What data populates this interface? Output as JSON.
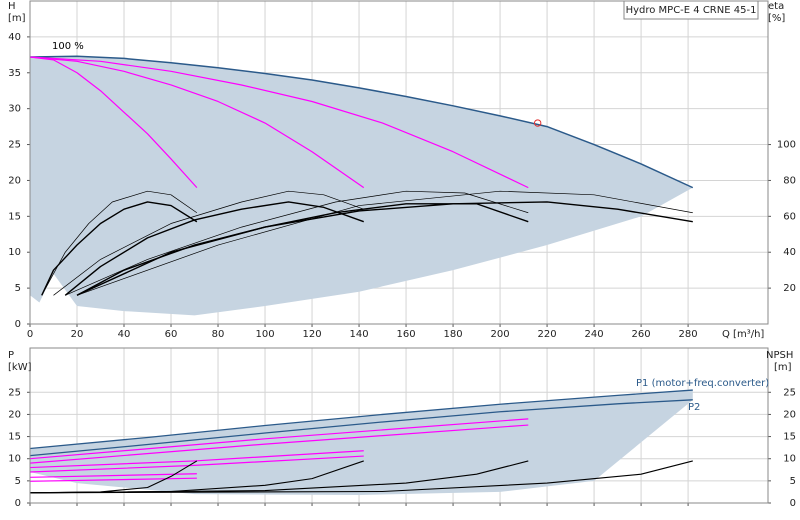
{
  "chart_data": [
    {
      "type": "line",
      "title": "Hydro MPC-E 4 CRNE 45-1",
      "y_label": "H",
      "y_unit": "[m]",
      "y2_label": "eta",
      "y2_unit": "[%]",
      "x_label": "Q [m³/h]",
      "xlim": [
        0,
        314
      ],
      "xticks": [
        0,
        20,
        40,
        60,
        80,
        100,
        120,
        140,
        160,
        180,
        200,
        220,
        240,
        260,
        280
      ],
      "ylim": [
        0,
        45
      ],
      "yticks": [
        0,
        5,
        10,
        15,
        20,
        25,
        30,
        35,
        40
      ],
      "y2lim": [
        0,
        180
      ],
      "y2ticks": [
        20,
        40,
        60,
        80,
        100
      ],
      "grid": true,
      "annotations": [
        "100 %"
      ],
      "band": {
        "color": "#c6d4e1",
        "x": [
          0,
          4,
          10,
          20,
          40,
          70,
          100,
          140,
          180,
          220,
          260,
          282
        ],
        "lower": [
          4,
          3,
          7,
          2.5,
          1.8,
          1.2,
          2.5,
          4.5,
          7.5,
          11,
          15,
          19
        ]
      },
      "series": [
        {
          "color": "#2b5a8a",
          "width": 1.5,
          "x": [
            0,
            20,
            40,
            60,
            80,
            100,
            120,
            140,
            160,
            180,
            200,
            220,
            240,
            260,
            282
          ],
          "values": [
            37.2,
            37.3,
            37,
            36.4,
            35.7,
            34.9,
            34,
            32.9,
            31.7,
            30.4,
            29,
            27.5,
            25,
            22.3,
            19
          ]
        },
        {
          "color": "#ff00ff",
          "width": 1.2,
          "x": [
            0,
            10,
            20,
            30,
            40,
            50,
            60,
            71
          ],
          "values": [
            37.2,
            36.8,
            35,
            32.5,
            29.5,
            26.5,
            23,
            19
          ]
        },
        {
          "color": "#ff00ff",
          "width": 1.2,
          "x": [
            0,
            20,
            40,
            60,
            80,
            100,
            120,
            142
          ],
          "values": [
            37.2,
            36.6,
            35.2,
            33.3,
            31,
            28,
            24,
            19
          ]
        },
        {
          "color": "#ff00ff",
          "width": 1.2,
          "x": [
            0,
            30,
            60,
            90,
            120,
            150,
            180,
            212
          ],
          "values": [
            37.2,
            36.6,
            35.2,
            33.3,
            31,
            28,
            24,
            19
          ]
        },
        {
          "color": "#000000",
          "width": 1.4,
          "axis": "y2",
          "x": [
            5,
            10,
            20,
            30,
            40,
            50,
            60,
            71
          ],
          "values": [
            16,
            30,
            44,
            56,
            64,
            68,
            66,
            57
          ]
        },
        {
          "color": "#000000",
          "width": 0.7,
          "axis": "y2",
          "x": [
            5,
            15,
            25,
            35,
            50,
            60,
            71
          ],
          "values": [
            16,
            40,
            56,
            68,
            74,
            72,
            62
          ]
        },
        {
          "color": "#000000",
          "width": 1.4,
          "axis": "y2",
          "x": [
            15,
            30,
            50,
            70,
            90,
            110,
            125,
            142
          ],
          "values": [
            16,
            32,
            48,
            58,
            64,
            68,
            65,
            57
          ]
        },
        {
          "color": "#000000",
          "width": 0.7,
          "axis": "y2",
          "x": [
            10,
            30,
            60,
            90,
            110,
            125,
            142
          ],
          "values": [
            16,
            36,
            56,
            68,
            74,
            72,
            64
          ]
        },
        {
          "color": "#000000",
          "width": 1.4,
          "axis": "y2",
          "x": [
            20,
            40,
            70,
            100,
            130,
            160,
            190,
            212
          ],
          "values": [
            16,
            30,
            44,
            54,
            62,
            67,
            67,
            57
          ]
        },
        {
          "color": "#000000",
          "width": 0.7,
          "axis": "y2",
          "x": [
            15,
            50,
            90,
            130,
            160,
            185,
            212
          ],
          "values": [
            16,
            36,
            54,
            68,
            74,
            73,
            62
          ]
        },
        {
          "color": "#000000",
          "width": 1.4,
          "axis": "y2",
          "x": [
            20,
            60,
            100,
            140,
            180,
            220,
            250,
            282
          ],
          "values": [
            16,
            40,
            54,
            63,
            67,
            68,
            64,
            57
          ]
        },
        {
          "color": "#000000",
          "width": 0.7,
          "axis": "y2",
          "x": [
            20,
            80,
            140,
            200,
            240,
            282
          ],
          "values": [
            16,
            44,
            66,
            74,
            72,
            62
          ]
        }
      ],
      "points": {
        "color": "#e03030",
        "x": [
          216
        ],
        "values": [
          28
        ]
      }
    },
    {
      "type": "line",
      "y_label": "P",
      "y_unit": "[kW]",
      "y2_label": "NPSH",
      "y2_unit": "[m]",
      "xlim": [
        0,
        314
      ],
      "xticks": [
        0,
        20,
        40,
        60,
        80,
        100,
        120,
        140,
        160,
        180,
        200,
        220,
        240,
        260,
        280
      ],
      "ylim": [
        0,
        35
      ],
      "yticks": [
        0,
        5,
        10,
        15,
        20,
        25
      ],
      "y2lim": [
        0,
        35
      ],
      "y2ticks": [
        0,
        5,
        10,
        15,
        20,
        25
      ],
      "grid": true,
      "annotations": [
        "P1 (motor+freq.converter)",
        "P2"
      ],
      "band": {
        "color": "#c6d4e1",
        "x": [
          0,
          20,
          70,
          140,
          200,
          240,
          282
        ],
        "lower": [
          7,
          4.5,
          2,
          1.8,
          2.5,
          5,
          23.3
        ]
      },
      "series": [
        {
          "color": "#2b5a8a",
          "width": 1.3,
          "x": [
            0,
            50,
            100,
            150,
            200,
            250,
            282
          ],
          "values": [
            12.3,
            14.8,
            17.5,
            20,
            22.3,
            24.3,
            25.5
          ]
        },
        {
          "color": "#2b5a8a",
          "width": 1.3,
          "x": [
            0,
            50,
            100,
            150,
            200,
            250,
            282
          ],
          "values": [
            10.7,
            13.2,
            15.8,
            18.3,
            20.6,
            22.4,
            23.3
          ]
        },
        {
          "color": "#ff00ff",
          "width": 1.2,
          "x": [
            0,
            71
          ],
          "values": [
            5.8,
            6.6
          ]
        },
        {
          "color": "#ff00ff",
          "width": 1.2,
          "x": [
            0,
            71
          ],
          "values": [
            4.9,
            5.6
          ]
        },
        {
          "color": "#ff00ff",
          "width": 1.2,
          "x": [
            0,
            70,
            142
          ],
          "values": [
            8,
            9.5,
            11.8
          ]
        },
        {
          "color": "#ff00ff",
          "width": 1.2,
          "x": [
            0,
            70,
            142
          ],
          "values": [
            7,
            8.5,
            10.6
          ]
        },
        {
          "color": "#ff00ff",
          "width": 1.2,
          "x": [
            0,
            100,
            212
          ],
          "values": [
            10,
            14.5,
            19
          ]
        },
        {
          "color": "#ff00ff",
          "width": 1.2,
          "x": [
            0,
            100,
            212
          ],
          "values": [
            9,
            13.3,
            17.6
          ]
        },
        {
          "color": "#000000",
          "width": 1.1,
          "axis": "y2",
          "x": [
            0,
            30,
            50,
            60,
            71
          ],
          "values": [
            2.3,
            2.5,
            3.5,
            6,
            9.5
          ]
        },
        {
          "color": "#000000",
          "width": 1.1,
          "axis": "y2",
          "x": [
            0,
            60,
            100,
            120,
            142
          ],
          "values": [
            2.3,
            2.6,
            4,
            5.5,
            9.5
          ]
        },
        {
          "color": "#000000",
          "width": 1.1,
          "axis": "y2",
          "x": [
            0,
            100,
            160,
            190,
            212
          ],
          "values": [
            2.3,
            2.8,
            4.5,
            6.5,
            9.5
          ]
        },
        {
          "color": "#000000",
          "width": 1.1,
          "axis": "y2",
          "x": [
            0,
            150,
            220,
            260,
            282
          ],
          "values": [
            2.3,
            2.6,
            4.5,
            6.5,
            9.5
          ]
        }
      ]
    }
  ]
}
